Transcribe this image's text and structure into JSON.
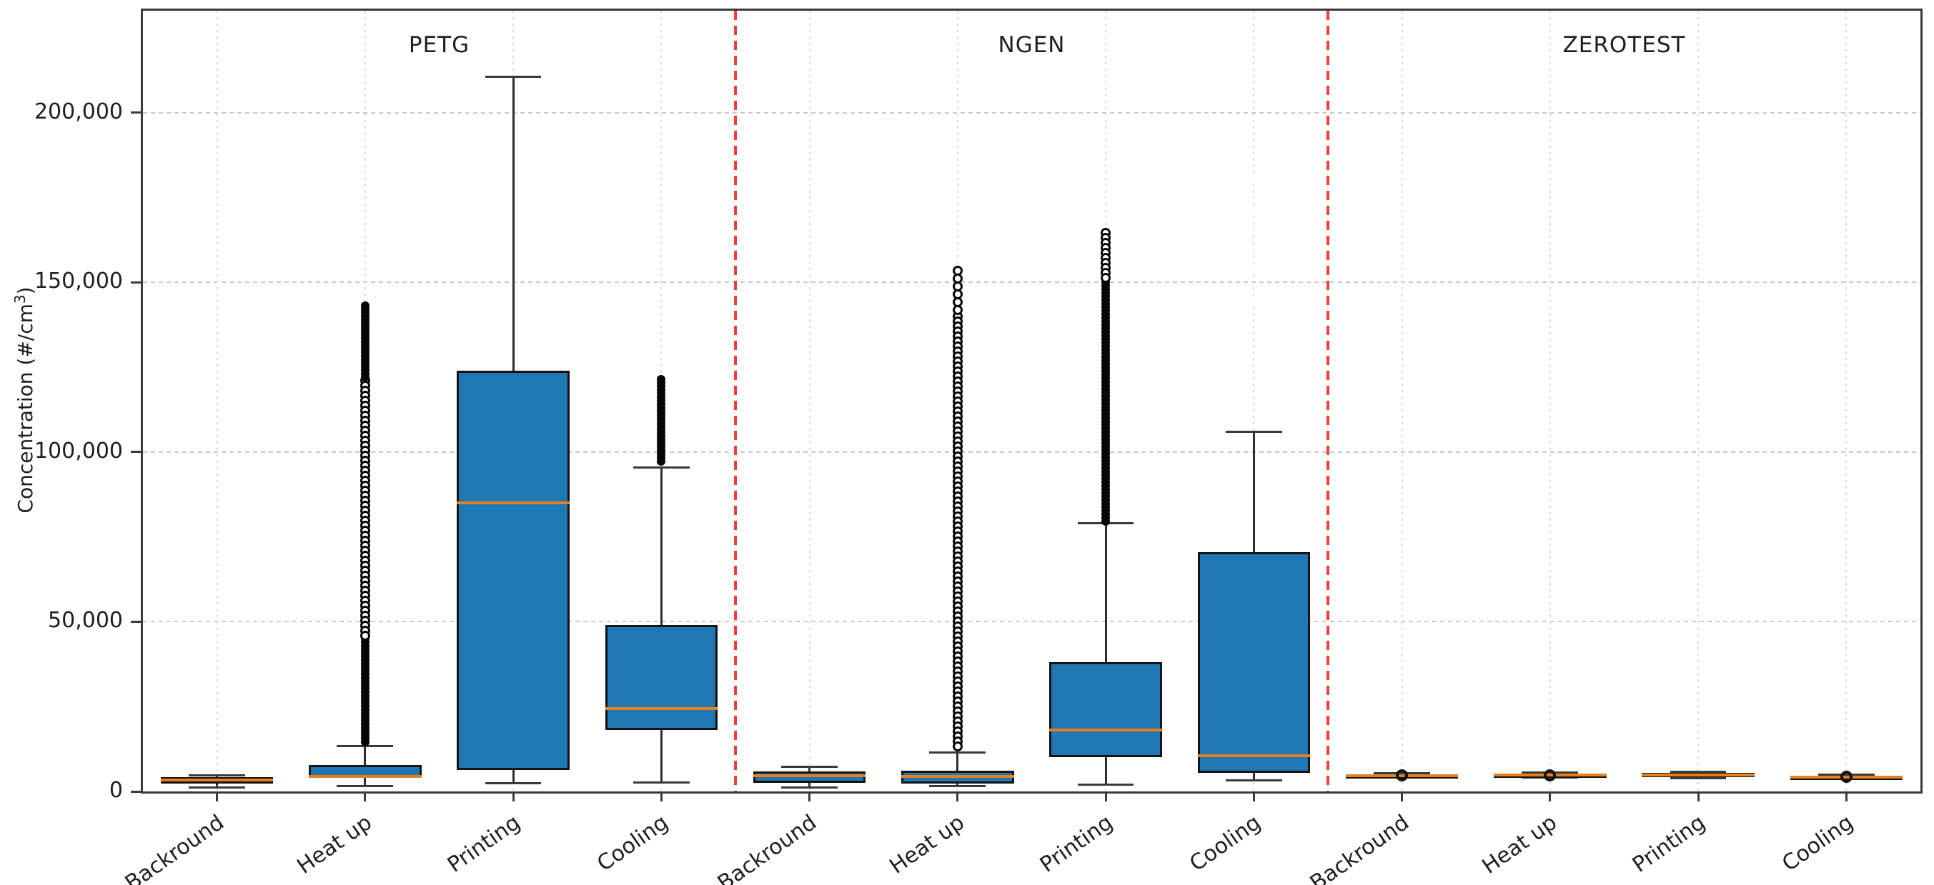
{
  "chart_data": {
    "type": "boxplot",
    "ylabel_main": "Concentration (#/cm",
    "ylabel_sup": "3",
    "ylabel_close": ")",
    "ylim": [
      0,
      230000
    ],
    "yticks": [
      {
        "value": 0,
        "label": "0"
      },
      {
        "value": 50000,
        "label": "50,000"
      },
      {
        "value": 100000,
        "label": "100,000"
      },
      {
        "value": 150000,
        "label": "150,000"
      },
      {
        "value": 200000,
        "label": "200,000"
      }
    ],
    "groups": [
      {
        "name": "PETG"
      },
      {
        "name": "NGEN"
      },
      {
        "name": "ZEROTEST"
      }
    ],
    "separators_after_category": [
      4,
      8
    ],
    "colors": {
      "box_fill": "#1f77b4",
      "box_edge": "#141414",
      "median": "#e87f1b",
      "whisker": "#2e2e2e",
      "separator": "#fb3a3a",
      "grid": "#c9c9c9"
    },
    "boxes": [
      {
        "group": "PETG",
        "stage": "Backround",
        "whislo": 1200,
        "q1": 2300,
        "med": 3300,
        "q3": 4200,
        "whishi": 4800,
        "outliers": []
      },
      {
        "group": "PETG",
        "stage": "Heat up",
        "whislo": 1500,
        "q1": 4000,
        "med": 4400,
        "q3": 7800,
        "whishi": 13300,
        "outliers": [
          {
            "from": 13800,
            "to": 45000,
            "style": "dense"
          },
          {
            "from": 45000,
            "to": 121000,
            "style": "chain"
          },
          {
            "from": 121000,
            "to": 143000,
            "style": "dense"
          }
        ]
      },
      {
        "group": "PETG",
        "stage": "Printing",
        "whislo": 2500,
        "q1": 6300,
        "med": 85000,
        "q3": 124000,
        "whishi": 210500,
        "outliers": []
      },
      {
        "group": "PETG",
        "stage": "Cooling",
        "whislo": 2700,
        "q1": 18000,
        "med": 24500,
        "q3": 49000,
        "whishi": 95500,
        "outliers": [
          {
            "from": 96500,
            "to": 121500,
            "style": "dense"
          }
        ]
      },
      {
        "group": "NGEN",
        "stage": "Backround",
        "whislo": 1200,
        "q1": 2600,
        "med": 4600,
        "q3": 5900,
        "whishi": 7200,
        "outliers": []
      },
      {
        "group": "NGEN",
        "stage": "Heat up",
        "whislo": 1500,
        "q1": 2300,
        "med": 4500,
        "q3": 6100,
        "whishi": 11400,
        "outliers": [
          {
            "from": 11900,
            "to": 140000,
            "style": "chain"
          },
          {
            "from": 140000,
            "to": 153500,
            "style": "rings"
          }
        ]
      },
      {
        "group": "NGEN",
        "stage": "Printing",
        "whislo": 2000,
        "q1": 10000,
        "med": 18000,
        "q3": 38000,
        "whishi": 79000,
        "outliers": [
          {
            "from": 79500,
            "to": 150000,
            "style": "dense"
          },
          {
            "from": 150000,
            "to": 164500,
            "style": "chain"
          }
        ]
      },
      {
        "group": "NGEN",
        "stage": "Cooling",
        "whislo": 3200,
        "q1": 5500,
        "med": 10600,
        "q3": 70500,
        "whishi": 106000,
        "outliers": []
      },
      {
        "group": "ZEROTEST",
        "stage": "Backround",
        "whislo": 4000,
        "q1": 4300,
        "med": 4700,
        "q3": 5100,
        "whishi": 5400,
        "outliers": [
          {
            "from": 4650,
            "to": 4650,
            "style": "ring-single"
          }
        ]
      },
      {
        "group": "ZEROTEST",
        "stage": "Heat up",
        "whislo": 4100,
        "q1": 4400,
        "med": 4800,
        "q3": 5200,
        "whishi": 5500,
        "outliers": [
          {
            "from": 4750,
            "to": 4750,
            "style": "ring-single"
          }
        ]
      },
      {
        "group": "ZEROTEST",
        "stage": "Printing",
        "whislo": 3900,
        "q1": 4300,
        "med": 4800,
        "q3": 5500,
        "whishi": 5800,
        "outliers": []
      },
      {
        "group": "ZEROTEST",
        "stage": "Cooling",
        "whislo": 3700,
        "q1": 4000,
        "med": 4300,
        "q3": 4700,
        "whishi": 4900,
        "outliers": [
          {
            "from": 4300,
            "to": 4300,
            "style": "ring-single"
          }
        ]
      }
    ]
  }
}
